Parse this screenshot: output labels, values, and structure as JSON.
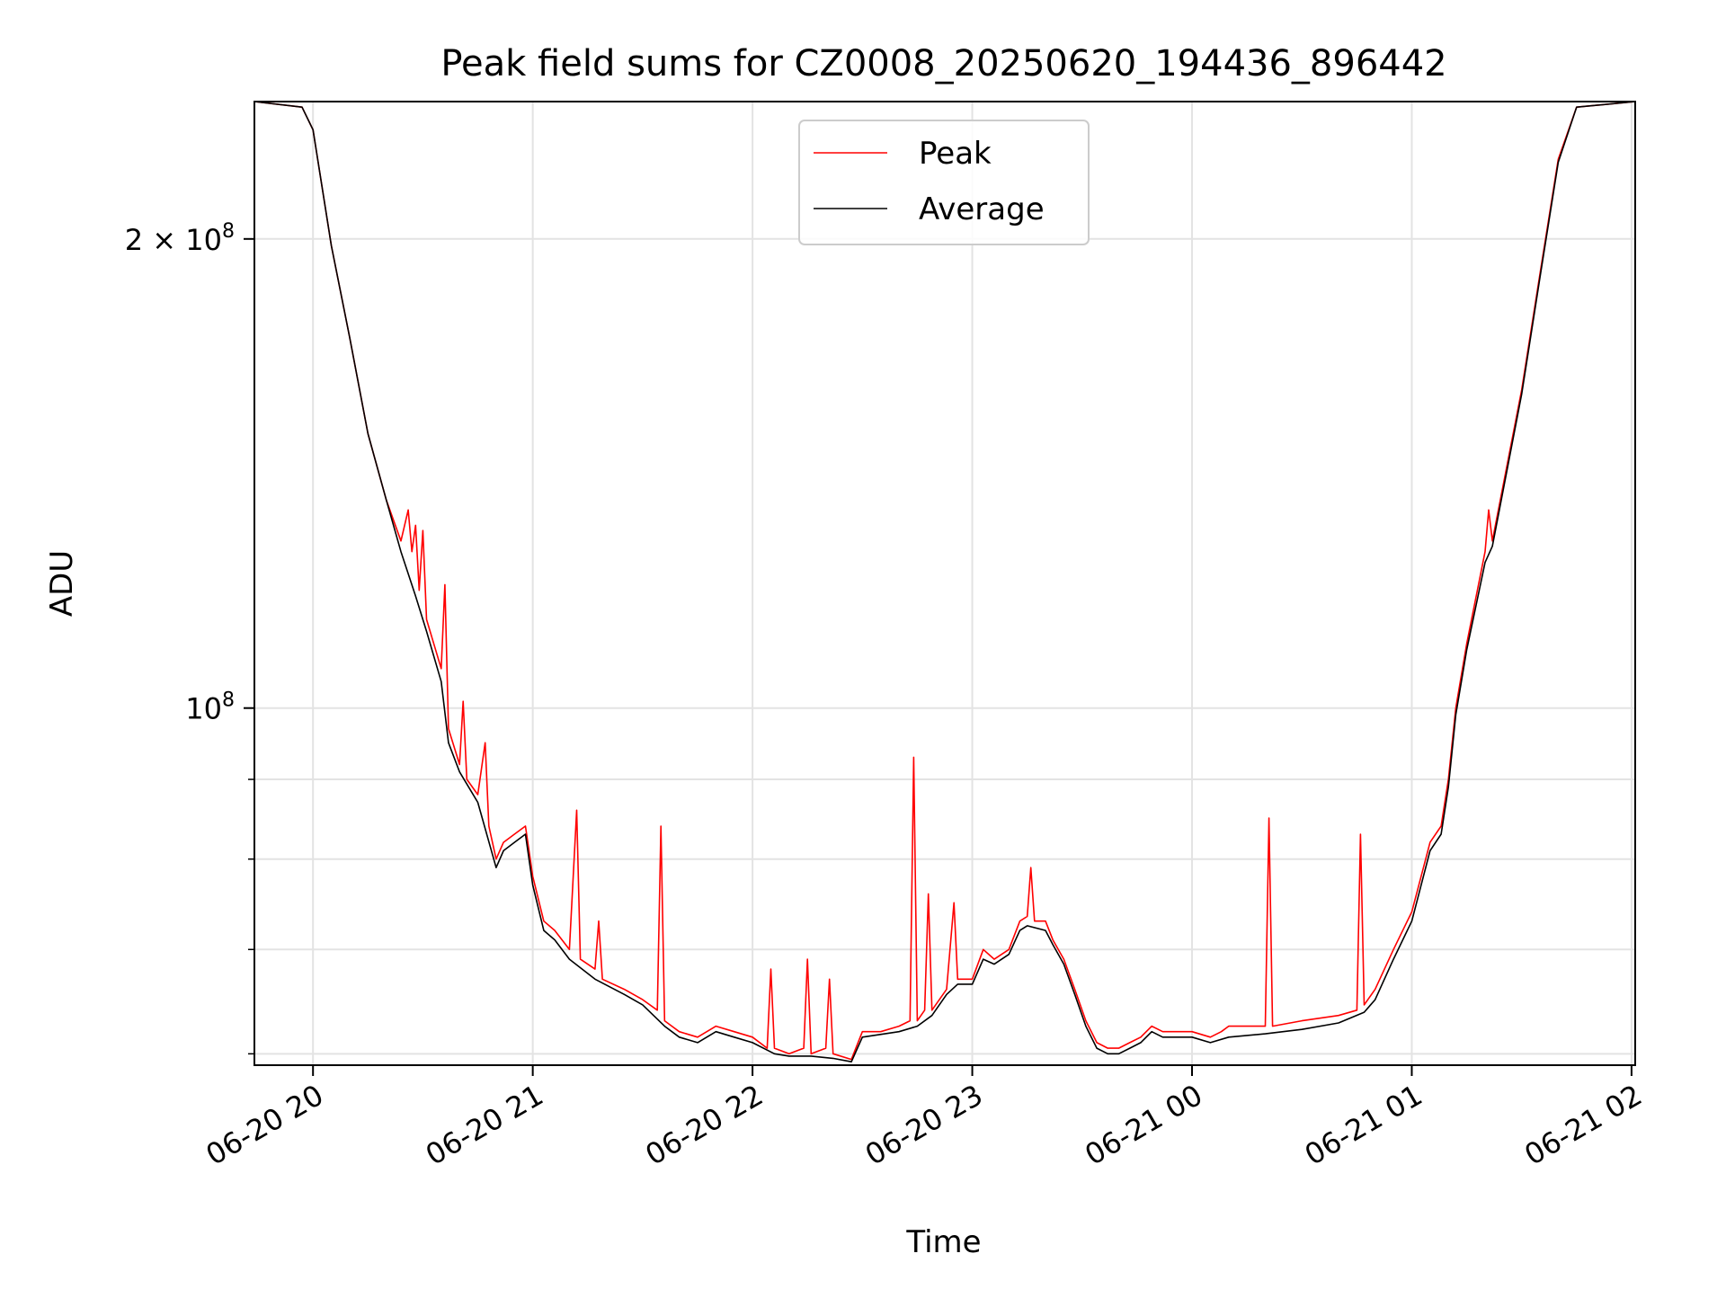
{
  "chart_data": {
    "type": "line",
    "title": "Peak field sums for CZ0008_20250620_194436_896442",
    "xlabel": "Time",
    "ylabel": "ADU",
    "yscale": "log",
    "grid": true,
    "legend_position": "top-center",
    "x_tick_labels": [
      "06-20 20",
      "06-20 21",
      "06-20 22",
      "06-20 23",
      "06-21 00",
      "06-21 01",
      "06-21 02"
    ],
    "x_tick_times": [
      "2025-06-20T20:00",
      "2025-06-20T21:00",
      "2025-06-20T22:00",
      "2025-06-20T23:00",
      "2025-06-21T00:00",
      "2025-06-21T01:00",
      "2025-06-21T02:00"
    ],
    "xlim": [
      "2025-06-20T19:44",
      "2025-06-21T02:01"
    ],
    "ylim": [
      59000000,
      245000000
    ],
    "y_major_ticks": [
      {
        "value": 200000000,
        "mantissa": "2",
        "exponent": "8"
      },
      {
        "value": 100000000,
        "mantissa": "",
        "exponent": "8"
      }
    ],
    "y_minor_tick_values": [
      90000000,
      80000000,
      70000000,
      60000000
    ],
    "series": [
      {
        "name": "Peak",
        "color": "#ff0000",
        "points": [
          [
            "2025-06-20T19:44",
            245000000
          ],
          [
            "2025-06-20T19:57",
            243000000
          ],
          [
            "2025-06-20T20:00",
            235000000
          ],
          [
            "2025-06-20T20:05",
            198000000
          ],
          [
            "2025-06-20T20:10",
            173000000
          ],
          [
            "2025-06-20T20:15",
            150000000
          ],
          [
            "2025-06-20T20:20",
            136000000
          ],
          [
            "2025-06-20T20:24",
            128000000
          ],
          [
            "2025-06-20T20:26",
            134000000
          ],
          [
            "2025-06-20T20:27",
            126000000
          ],
          [
            "2025-06-20T20:28",
            131000000
          ],
          [
            "2025-06-20T20:29",
            119000000
          ],
          [
            "2025-06-20T20:30",
            130000000
          ],
          [
            "2025-06-20T20:31",
            114000000
          ],
          [
            "2025-06-20T20:35",
            106000000
          ],
          [
            "2025-06-20T20:36",
            120000000
          ],
          [
            "2025-06-20T20:37",
            97000000
          ],
          [
            "2025-06-20T20:40",
            92000000
          ],
          [
            "2025-06-20T20:41",
            101000000
          ],
          [
            "2025-06-20T20:42",
            90000000
          ],
          [
            "2025-06-20T20:45",
            88000000
          ],
          [
            "2025-06-20T20:47",
            95000000
          ],
          [
            "2025-06-20T20:48",
            84000000
          ],
          [
            "2025-06-20T20:50",
            80000000
          ],
          [
            "2025-06-20T20:52",
            82000000
          ],
          [
            "2025-06-20T20:55",
            83000000
          ],
          [
            "2025-06-20T20:58",
            84000000
          ],
          [
            "2025-06-20T21:00",
            78000000
          ],
          [
            "2025-06-20T21:03",
            73000000
          ],
          [
            "2025-06-20T21:06",
            72000000
          ],
          [
            "2025-06-20T21:10",
            70000000
          ],
          [
            "2025-06-20T21:12",
            86000000
          ],
          [
            "2025-06-20T21:13",
            69000000
          ],
          [
            "2025-06-20T21:17",
            68000000
          ],
          [
            "2025-06-20T21:18",
            73000000
          ],
          [
            "2025-06-20T21:19",
            67000000
          ],
          [
            "2025-06-20T21:25",
            66000000
          ],
          [
            "2025-06-20T21:30",
            65000000
          ],
          [
            "2025-06-20T21:34",
            64000000
          ],
          [
            "2025-06-20T21:35",
            84000000
          ],
          [
            "2025-06-20T21:36",
            63000000
          ],
          [
            "2025-06-20T21:40",
            62000000
          ],
          [
            "2025-06-20T21:45",
            61500000
          ],
          [
            "2025-06-20T21:50",
            62500000
          ],
          [
            "2025-06-20T21:55",
            62000000
          ],
          [
            "2025-06-20T22:00",
            61500000
          ],
          [
            "2025-06-20T22:04",
            60500000
          ],
          [
            "2025-06-20T22:05",
            68000000
          ],
          [
            "2025-06-20T22:06",
            60500000
          ],
          [
            "2025-06-20T22:10",
            60000000
          ],
          [
            "2025-06-20T22:14",
            60500000
          ],
          [
            "2025-06-20T22:15",
            69000000
          ],
          [
            "2025-06-20T22:16",
            60000000
          ],
          [
            "2025-06-20T22:20",
            60500000
          ],
          [
            "2025-06-20T22:21",
            67000000
          ],
          [
            "2025-06-20T22:22",
            60000000
          ],
          [
            "2025-06-20T22:27",
            59500000
          ],
          [
            "2025-06-20T22:30",
            62000000
          ],
          [
            "2025-06-20T22:35",
            62000000
          ],
          [
            "2025-06-20T22:40",
            62500000
          ],
          [
            "2025-06-20T22:43",
            63000000
          ],
          [
            "2025-06-20T22:44",
            93000000
          ],
          [
            "2025-06-20T22:45",
            63000000
          ],
          [
            "2025-06-20T22:47",
            64000000
          ],
          [
            "2025-06-20T22:48",
            76000000
          ],
          [
            "2025-06-20T22:49",
            64000000
          ],
          [
            "2025-06-20T22:53",
            66000000
          ],
          [
            "2025-06-20T22:55",
            75000000
          ],
          [
            "2025-06-20T22:56",
            67000000
          ],
          [
            "2025-06-20T23:00",
            67000000
          ],
          [
            "2025-06-20T23:03",
            70000000
          ],
          [
            "2025-06-20T23:06",
            69000000
          ],
          [
            "2025-06-20T23:10",
            70000000
          ],
          [
            "2025-06-20T23:13",
            73000000
          ],
          [
            "2025-06-20T23:15",
            73500000
          ],
          [
            "2025-06-20T23:16",
            79000000
          ],
          [
            "2025-06-20T23:17",
            73000000
          ],
          [
            "2025-06-20T23:20",
            73000000
          ],
          [
            "2025-06-20T23:22",
            71000000
          ],
          [
            "2025-06-20T23:25",
            69000000
          ],
          [
            "2025-06-20T23:28",
            66000000
          ],
          [
            "2025-06-20T23:31",
            63000000
          ],
          [
            "2025-06-20T23:34",
            61000000
          ],
          [
            "2025-06-20T23:37",
            60500000
          ],
          [
            "2025-06-20T23:40",
            60500000
          ],
          [
            "2025-06-20T23:43",
            61000000
          ],
          [
            "2025-06-20T23:46",
            61500000
          ],
          [
            "2025-06-20T23:49",
            62500000
          ],
          [
            "2025-06-20T23:52",
            62000000
          ],
          [
            "2025-06-20T23:56",
            62000000
          ],
          [
            "2025-06-21T00:00",
            62000000
          ],
          [
            "2025-06-21T00:05",
            61500000
          ],
          [
            "2025-06-21T00:08",
            62000000
          ],
          [
            "2025-06-21T00:10",
            62500000
          ],
          [
            "2025-06-21T00:15",
            62500000
          ],
          [
            "2025-06-21T00:20",
            62500000
          ],
          [
            "2025-06-21T00:21",
            85000000
          ],
          [
            "2025-06-21T00:22",
            62500000
          ],
          [
            "2025-06-21T00:30",
            63000000
          ],
          [
            "2025-06-21T00:40",
            63500000
          ],
          [
            "2025-06-21T00:45",
            64000000
          ],
          [
            "2025-06-21T00:46",
            83000000
          ],
          [
            "2025-06-21T00:47",
            64500000
          ],
          [
            "2025-06-21T00:50",
            66000000
          ],
          [
            "2025-06-21T00:55",
            70000000
          ],
          [
            "2025-06-21T01:00",
            74000000
          ],
          [
            "2025-06-21T01:05",
            82000000
          ],
          [
            "2025-06-21T01:08",
            84000000
          ],
          [
            "2025-06-21T01:10",
            90000000
          ],
          [
            "2025-06-21T01:12",
            100000000
          ],
          [
            "2025-06-21T01:15",
            110000000
          ],
          [
            "2025-06-21T01:20",
            126000000
          ],
          [
            "2025-06-21T01:21",
            134000000
          ],
          [
            "2025-06-21T01:22",
            128000000
          ],
          [
            "2025-06-21T01:30",
            160000000
          ],
          [
            "2025-06-21T01:35",
            190000000
          ],
          [
            "2025-06-21T01:40",
            225000000
          ],
          [
            "2025-06-21T01:45",
            243000000
          ],
          [
            "2025-06-21T02:01",
            245000000
          ]
        ]
      },
      {
        "name": "Average",
        "color": "#000000",
        "points": [
          [
            "2025-06-20T19:44",
            245000000
          ],
          [
            "2025-06-20T19:57",
            243000000
          ],
          [
            "2025-06-20T20:00",
            235000000
          ],
          [
            "2025-06-20T20:05",
            198000000
          ],
          [
            "2025-06-20T20:10",
            173000000
          ],
          [
            "2025-06-20T20:15",
            150000000
          ],
          [
            "2025-06-20T20:20",
            136000000
          ],
          [
            "2025-06-20T20:24",
            126000000
          ],
          [
            "2025-06-20T20:28",
            118000000
          ],
          [
            "2025-06-20T20:31",
            112000000
          ],
          [
            "2025-06-20T20:35",
            104000000
          ],
          [
            "2025-06-20T20:37",
            95000000
          ],
          [
            "2025-06-20T20:40",
            91000000
          ],
          [
            "2025-06-20T20:45",
            87000000
          ],
          [
            "2025-06-20T20:50",
            79000000
          ],
          [
            "2025-06-20T20:52",
            81000000
          ],
          [
            "2025-06-20T20:55",
            82000000
          ],
          [
            "2025-06-20T20:58",
            83000000
          ],
          [
            "2025-06-20T21:00",
            77000000
          ],
          [
            "2025-06-20T21:03",
            72000000
          ],
          [
            "2025-06-20T21:06",
            71000000
          ],
          [
            "2025-06-20T21:10",
            69000000
          ],
          [
            "2025-06-20T21:17",
            67000000
          ],
          [
            "2025-06-20T21:25",
            65500000
          ],
          [
            "2025-06-20T21:30",
            64500000
          ],
          [
            "2025-06-20T21:36",
            62500000
          ],
          [
            "2025-06-20T21:40",
            61500000
          ],
          [
            "2025-06-20T21:45",
            61000000
          ],
          [
            "2025-06-20T21:50",
            62000000
          ],
          [
            "2025-06-20T21:55",
            61500000
          ],
          [
            "2025-06-20T22:00",
            61000000
          ],
          [
            "2025-06-20T22:06",
            60000000
          ],
          [
            "2025-06-20T22:10",
            59800000
          ],
          [
            "2025-06-20T22:16",
            59800000
          ],
          [
            "2025-06-20T22:22",
            59600000
          ],
          [
            "2025-06-20T22:27",
            59300000
          ],
          [
            "2025-06-20T22:30",
            61500000
          ],
          [
            "2025-06-20T22:40",
            62000000
          ],
          [
            "2025-06-20T22:45",
            62500000
          ],
          [
            "2025-06-20T22:49",
            63500000
          ],
          [
            "2025-06-20T22:53",
            65500000
          ],
          [
            "2025-06-20T22:56",
            66500000
          ],
          [
            "2025-06-20T23:00",
            66500000
          ],
          [
            "2025-06-20T23:03",
            69000000
          ],
          [
            "2025-06-20T23:06",
            68500000
          ],
          [
            "2025-06-20T23:10",
            69500000
          ],
          [
            "2025-06-20T23:13",
            72000000
          ],
          [
            "2025-06-20T23:15",
            72500000
          ],
          [
            "2025-06-20T23:20",
            72000000
          ],
          [
            "2025-06-20T23:22",
            70500000
          ],
          [
            "2025-06-20T23:25",
            68500000
          ],
          [
            "2025-06-20T23:28",
            65500000
          ],
          [
            "2025-06-20T23:31",
            62500000
          ],
          [
            "2025-06-20T23:34",
            60500000
          ],
          [
            "2025-06-20T23:37",
            60000000
          ],
          [
            "2025-06-20T23:40",
            60000000
          ],
          [
            "2025-06-20T23:43",
            60500000
          ],
          [
            "2025-06-20T23:46",
            61000000
          ],
          [
            "2025-06-20T23:49",
            62000000
          ],
          [
            "2025-06-20T23:52",
            61500000
          ],
          [
            "2025-06-20T23:56",
            61500000
          ],
          [
            "2025-06-21T00:00",
            61500000
          ],
          [
            "2025-06-21T00:05",
            61000000
          ],
          [
            "2025-06-21T00:10",
            61500000
          ],
          [
            "2025-06-21T00:20",
            61800000
          ],
          [
            "2025-06-21T00:30",
            62200000
          ],
          [
            "2025-06-21T00:40",
            62800000
          ],
          [
            "2025-06-21T00:47",
            63800000
          ],
          [
            "2025-06-21T00:50",
            65000000
          ],
          [
            "2025-06-21T00:55",
            69000000
          ],
          [
            "2025-06-21T01:00",
            73000000
          ],
          [
            "2025-06-21T01:05",
            81000000
          ],
          [
            "2025-06-21T01:08",
            83000000
          ],
          [
            "2025-06-21T01:10",
            89000000
          ],
          [
            "2025-06-21T01:12",
            99000000
          ],
          [
            "2025-06-21T01:15",
            109000000
          ],
          [
            "2025-06-21T01:20",
            124000000
          ],
          [
            "2025-06-21T01:22",
            127000000
          ],
          [
            "2025-06-21T01:30",
            159000000
          ],
          [
            "2025-06-21T01:35",
            189000000
          ],
          [
            "2025-06-21T01:40",
            224000000
          ],
          [
            "2025-06-21T01:45",
            243000000
          ],
          [
            "2025-06-21T02:01",
            245000000
          ]
        ]
      }
    ]
  }
}
